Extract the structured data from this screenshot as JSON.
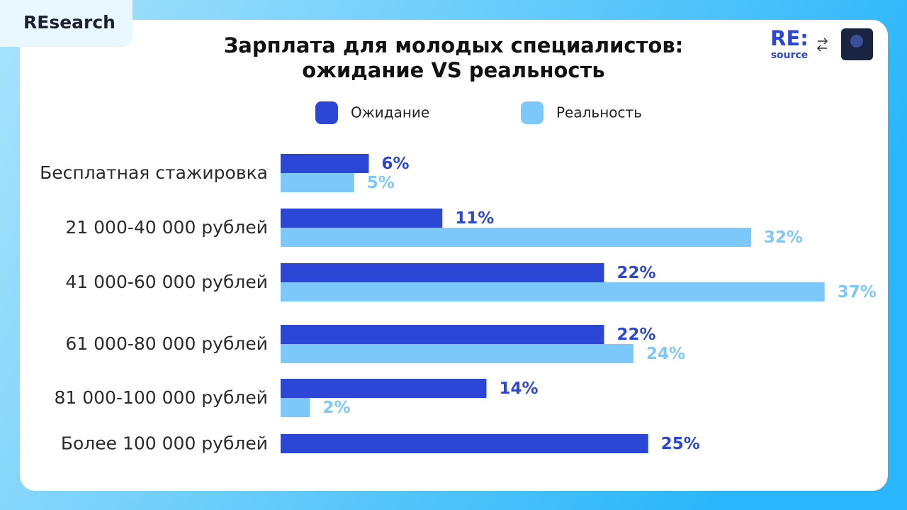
{
  "chart_data": {
    "type": "hbar",
    "badge": "REsearch",
    "logo": {
      "main": "RE:",
      "sub": "source"
    },
    "title": [
      "Зарплата для молодых специалистов:",
      "ожидание VS реальность"
    ],
    "categories": [
      "Бесплатная стажировка",
      "21 000-40 000 рублей",
      "41 000-60 000 рублей",
      "61 000-80 000 рублей",
      "81 000-100 000 рублей",
      "Более 100 000 рублей"
    ],
    "series": [
      {
        "name": "Ожидание",
        "color": "#2c46d6",
        "values": [
          6,
          11,
          22,
          22,
          14,
          25
        ],
        "value_labels": [
          "6%",
          "11%",
          "22%",
          "22%",
          "14%",
          "25%"
        ]
      },
      {
        "name": "Реальность",
        "color": "#7cc8fb",
        "values": [
          5,
          32,
          37,
          24,
          2,
          null
        ],
        "value_labels": [
          "5%",
          "32%",
          "37%",
          "24%",
          "2%",
          null
        ]
      }
    ]
  }
}
